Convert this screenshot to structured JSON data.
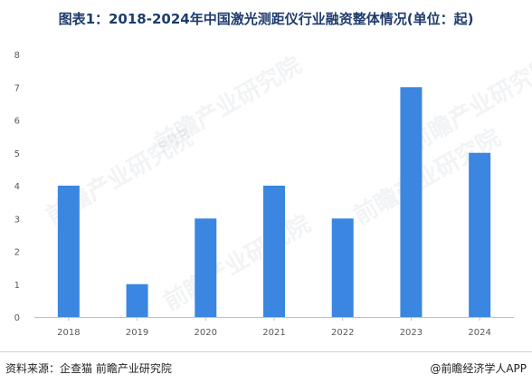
{
  "title": "图表1：2018-2024年中国激光测距仪行业融资整体情况(单位：起)",
  "source_left": "资料来源：企查猫 前瞻产业研究院",
  "source_right": "@前瞻经济学人APP",
  "watermark": "前瞻产业研究院",
  "colors": {
    "bar": "#3a86e0",
    "axis": "#bfbfbf",
    "title": "#1f3b6e"
  },
  "chart_data": {
    "type": "bar",
    "categories": [
      "2018",
      "2019",
      "2020",
      "2021",
      "2022",
      "2023",
      "2024"
    ],
    "values": [
      4,
      1,
      3,
      4,
      3,
      7,
      5
    ],
    "yticks": [
      0,
      1,
      2,
      3,
      4,
      5,
      6,
      7,
      8
    ],
    "ylim": [
      0,
      8
    ],
    "grid": false,
    "xlabel": "",
    "ylabel": ""
  }
}
